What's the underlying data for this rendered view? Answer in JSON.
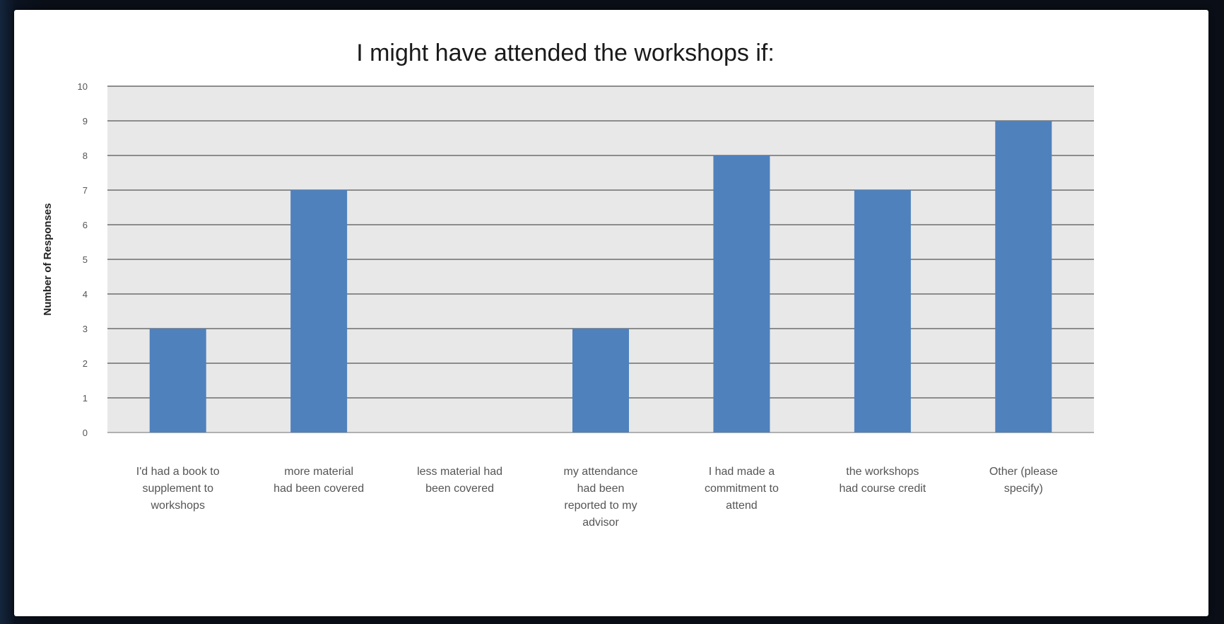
{
  "chart_data": {
    "type": "bar",
    "title": "I might have attended the workshops if:",
    "ylabel": "Number of Responses",
    "xlabel": "",
    "ylim": [
      0,
      10
    ],
    "yticks": [
      0,
      1,
      2,
      3,
      4,
      5,
      6,
      7,
      8,
      9,
      10
    ],
    "grid": true,
    "legend": "none",
    "bar_color": "#4f81bd",
    "plot_background": "#e8e8e8",
    "categories": [
      "I'd had a book to supplement to workshops",
      "more material had been covered",
      "less material had been covered",
      "my attendance had been reported to my advisor",
      "I had made a commitment to attend",
      "the workshops had course credit",
      "Other (please specify)"
    ],
    "category_lines": [
      [
        "I'd had a book to",
        "supplement to",
        "workshops"
      ],
      [
        "more material",
        "had been covered"
      ],
      [
        "less material had",
        "been covered"
      ],
      [
        "my attendance",
        "had been",
        "reported to my",
        "advisor"
      ],
      [
        "I had made a",
        "commitment to",
        "attend"
      ],
      [
        "the workshops",
        "had course credit"
      ],
      [
        "Other (please",
        "specify)"
      ]
    ],
    "values": [
      3,
      7,
      0,
      3,
      8,
      7,
      9
    ]
  }
}
